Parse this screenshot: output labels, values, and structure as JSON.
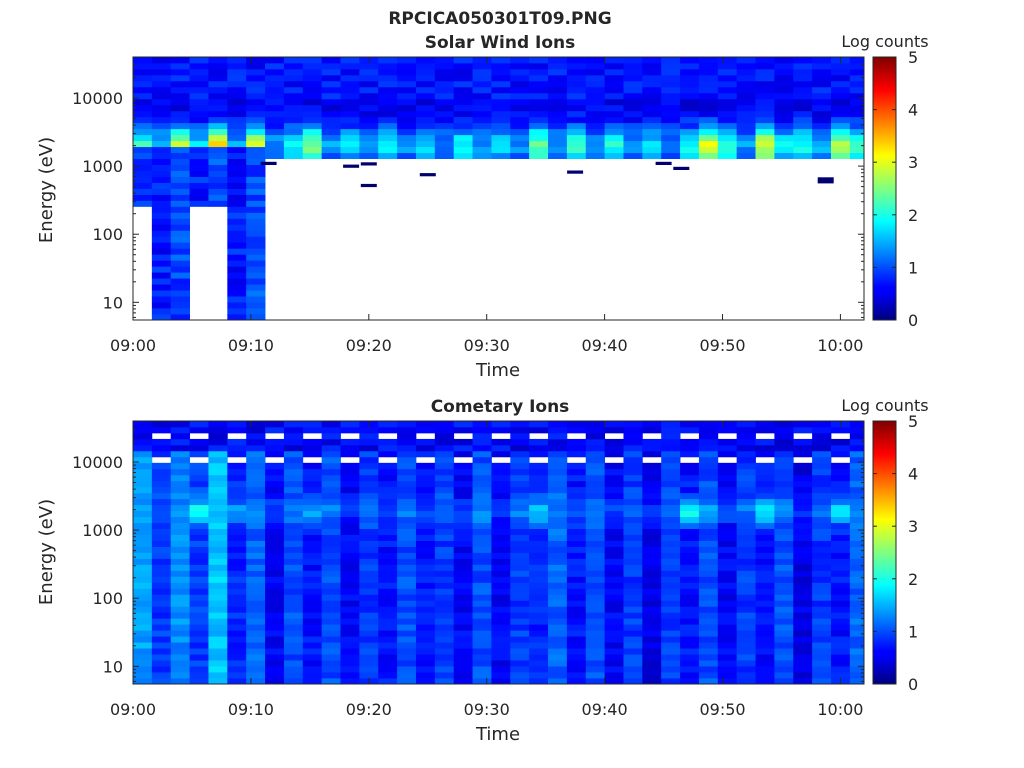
{
  "figure": {
    "title": "RPCICA050301T09.PNG"
  },
  "colormap": {
    "name": "jet",
    "min": 0,
    "max": 5
  },
  "chart_data": [
    {
      "type": "heatmap",
      "title": "Solar Wind Ions",
      "xlabel": "Time",
      "ylabel": "Energy (eV)",
      "y_scale": "log",
      "ylim": [
        5.5,
        40000
      ],
      "xlim": [
        "09:00",
        "10:02"
      ],
      "xticks": [
        "09:00",
        "09:10",
        "09:20",
        "09:30",
        "09:40",
        "09:50",
        "10:00"
      ],
      "yticks": [
        {
          "value": 10,
          "label": "10"
        },
        {
          "value": 100,
          "label": "100"
        },
        {
          "value": 1000,
          "label": "1000"
        },
        {
          "value": 10000,
          "label": "10000"
        }
      ],
      "colorbar": {
        "label": "Log counts",
        "ticks": [
          "0",
          "1",
          "2",
          "3",
          "4",
          "5"
        ]
      },
      "scan_minutes": 3.2,
      "peak_energy_ev": 2000,
      "columns": [
        {
          "start": "09:00",
          "end": "09:01:36",
          "min_energy": 280,
          "peak": 1.5
        },
        {
          "start": "09:01:36",
          "end": "09:03:12",
          "min_energy": 5.5,
          "peak": 1.0
        },
        {
          "start": "09:03:12",
          "end": "09:04:48",
          "min_energy": 5.5,
          "peak": 2.3
        },
        {
          "start": "09:04:48",
          "end": "09:06:24",
          "min_energy": 280,
          "peak": 1.1
        },
        {
          "start": "09:06:24",
          "end": "09:08:00",
          "min_energy": 280,
          "peak": 2.7
        },
        {
          "start": "09:08:00",
          "end": "09:09:36",
          "min_energy": 5.5,
          "peak": 0.9
        },
        {
          "start": "09:09:36",
          "end": "09:11:12",
          "min_energy": 5.5,
          "peak": 2.5
        },
        {
          "start": "09:11:12",
          "end": "09:12:48",
          "min_energy": 1200,
          "peak": 0.8
        },
        {
          "start": "09:12:48",
          "end": "09:14:24",
          "min_energy": 1200,
          "peak": 1.3
        },
        {
          "start": "09:14:24",
          "end": "09:16:00",
          "min_energy": 1200,
          "peak": 2.0
        },
        {
          "start": "09:16:00",
          "end": "09:17:36",
          "min_energy": 1200,
          "peak": 0.8
        },
        {
          "start": "09:17:36",
          "end": "09:19:12",
          "min_energy": 1200,
          "peak": 1.2
        },
        {
          "start": "09:19:12",
          "end": "09:20:48",
          "min_energy": 1200,
          "peak": 0.7
        },
        {
          "start": "09:20:48",
          "end": "09:22:24",
          "min_energy": 1200,
          "peak": 1.3
        },
        {
          "start": "09:22:24",
          "end": "09:24:00",
          "min_energy": 1200,
          "peak": 0.8
        },
        {
          "start": "09:24:00",
          "end": "09:25:36",
          "min_energy": 1200,
          "peak": 1.2
        },
        {
          "start": "09:25:36",
          "end": "09:27:12",
          "min_energy": 1200,
          "peak": 0.7
        },
        {
          "start": "09:27:12",
          "end": "09:28:48",
          "min_energy": 1200,
          "peak": 1.3
        },
        {
          "start": "09:28:48",
          "end": "09:30:24",
          "min_energy": 1200,
          "peak": 0.8
        },
        {
          "start": "09:30:24",
          "end": "09:32:00",
          "min_energy": 1200,
          "peak": 1.2
        },
        {
          "start": "09:32:00",
          "end": "09:33:36",
          "min_energy": 1200,
          "peak": 0.7
        },
        {
          "start": "09:33:36",
          "end": "09:35:12",
          "min_energy": 1200,
          "peak": 1.9
        },
        {
          "start": "09:35:12",
          "end": "09:36:48",
          "min_energy": 1200,
          "peak": 0.9
        },
        {
          "start": "09:36:48",
          "end": "09:38:24",
          "min_energy": 1200,
          "peak": 1.6
        },
        {
          "start": "09:38:24",
          "end": "09:40:00",
          "min_energy": 1200,
          "peak": 0.8
        },
        {
          "start": "09:40:00",
          "end": "09:41:36",
          "min_energy": 1200,
          "peak": 1.4
        },
        {
          "start": "09:41:36",
          "end": "09:43:12",
          "min_energy": 1200,
          "peak": 0.8
        },
        {
          "start": "09:43:12",
          "end": "09:44:48",
          "min_energy": 1200,
          "peak": 1.2
        },
        {
          "start": "09:44:48",
          "end": "09:46:24",
          "min_energy": 1200,
          "peak": 0.7
        },
        {
          "start": "09:46:24",
          "end": "09:48:00",
          "min_energy": 1200,
          "peak": 1.3
        },
        {
          "start": "09:48:00",
          "end": "09:49:36",
          "min_energy": 1200,
          "peak": 2.4
        },
        {
          "start": "09:49:36",
          "end": "09:51:12",
          "min_energy": 1200,
          "peak": 1.5
        },
        {
          "start": "09:51:12",
          "end": "09:52:48",
          "min_energy": 1200,
          "peak": 0.8
        },
        {
          "start": "09:52:48",
          "end": "09:54:24",
          "min_energy": 1200,
          "peak": 2.4
        },
        {
          "start": "09:54:24",
          "end": "09:56:00",
          "min_energy": 1200,
          "peak": 1.3
        },
        {
          "start": "09:56:00",
          "end": "09:57:36",
          "min_energy": 1200,
          "peak": 1.5
        },
        {
          "start": "09:57:36",
          "end": "09:59:12",
          "min_energy": 1200,
          "peak": 0.9
        },
        {
          "start": "09:59:12",
          "end": "10:00:48",
          "min_energy": 1200,
          "peak": 2.2
        },
        {
          "start": "10:00:48",
          "end": "10:02:24",
          "min_energy": 1200,
          "peak": 1.8
        }
      ],
      "low_energy_blips": [
        {
          "time": "09:18:30",
          "energy": 1000
        },
        {
          "time": "09:20",
          "energy": 1080
        },
        {
          "time": "09:20",
          "energy": 520
        },
        {
          "time": "09:25",
          "energy": 750
        },
        {
          "time": "09:37:30",
          "energy": 820
        },
        {
          "time": "09:45",
          "energy": 1100
        },
        {
          "time": "09:46:30",
          "energy": 930
        },
        {
          "time": "09:58:45",
          "energy": 650
        },
        {
          "time": "09:58:45",
          "energy": 590
        },
        {
          "time": "09:11:30",
          "energy": 1100
        }
      ]
    },
    {
      "type": "heatmap",
      "title": "Cometary Ions",
      "xlabel": "Time",
      "ylabel": "Energy (eV)",
      "y_scale": "log",
      "ylim": [
        5.5,
        40000
      ],
      "xlim": [
        "09:00",
        "10:02"
      ],
      "xticks": [
        "09:00",
        "09:10",
        "09:20",
        "09:30",
        "09:40",
        "09:50",
        "10:00"
      ],
      "yticks": [
        {
          "value": 10,
          "label": "10"
        },
        {
          "value": 100,
          "label": "100"
        },
        {
          "value": 1000,
          "label": "1000"
        },
        {
          "value": 10000,
          "label": "10000"
        }
      ],
      "colorbar": {
        "label": "Log counts",
        "ticks": [
          "0",
          "1",
          "2",
          "3",
          "4",
          "5"
        ]
      },
      "scan_minutes": 3.2,
      "peak_energy_ev": 1900,
      "columns": [
        {
          "start": "09:00",
          "end": "09:01:36",
          "base": 1.4,
          "peak": 1.3
        },
        {
          "start": "09:01:36",
          "end": "09:03:12",
          "base": 0.9,
          "peak": 1.0
        },
        {
          "start": "09:03:12",
          "end": "09:04:48",
          "base": 1.3,
          "peak": 1.3
        },
        {
          "start": "09:04:48",
          "end": "09:06:24",
          "base": 0.9,
          "peak": 1.9
        },
        {
          "start": "09:06:24",
          "end": "09:08:00",
          "base": 1.6,
          "peak": 1.5
        },
        {
          "start": "09:08:00",
          "end": "09:09:36",
          "base": 0.8,
          "peak": 1.4
        },
        {
          "start": "09:09:36",
          "end": "09:11:12",
          "base": 1.1,
          "peak": 1.3
        },
        {
          "start": "09:11:12",
          "end": "09:12:48",
          "base": 0.6,
          "peak": 1.0
        },
        {
          "start": "09:12:48",
          "end": "09:14:24",
          "base": 1.0,
          "peak": 1.2
        },
        {
          "start": "09:14:24",
          "end": "09:16:00",
          "base": 0.7,
          "peak": 1.5
        },
        {
          "start": "09:16:00",
          "end": "09:17:36",
          "base": 1.0,
          "peak": 1.2
        },
        {
          "start": "09:17:36",
          "end": "09:19:12",
          "base": 0.6,
          "peak": 0.9
        },
        {
          "start": "09:19:12",
          "end": "09:20:48",
          "base": 0.9,
          "peak": 1.1
        },
        {
          "start": "09:20:48",
          "end": "09:22:24",
          "base": 0.7,
          "peak": 0.9
        },
        {
          "start": "09:22:24",
          "end": "09:24:00",
          "base": 1.0,
          "peak": 1.2
        },
        {
          "start": "09:24:00",
          "end": "09:25:36",
          "base": 0.7,
          "peak": 1.0
        },
        {
          "start": "09:25:36",
          "end": "09:27:12",
          "base": 0.9,
          "peak": 1.2
        },
        {
          "start": "09:27:12",
          "end": "09:28:48",
          "base": 0.6,
          "peak": 0.9
        },
        {
          "start": "09:28:48",
          "end": "09:30:24",
          "base": 1.0,
          "peak": 1.3
        },
        {
          "start": "09:30:24",
          "end": "09:32:00",
          "base": 0.6,
          "peak": 0.9
        },
        {
          "start": "09:32:00",
          "end": "09:33:36",
          "base": 0.9,
          "peak": 1.2
        },
        {
          "start": "09:33:36",
          "end": "09:35:12",
          "base": 0.8,
          "peak": 1.7
        },
        {
          "start": "09:35:12",
          "end": "09:36:48",
          "base": 1.1,
          "peak": 1.3
        },
        {
          "start": "09:36:48",
          "end": "09:38:24",
          "base": 0.7,
          "peak": 1.0
        },
        {
          "start": "09:38:24",
          "end": "09:40:00",
          "base": 1.0,
          "peak": 1.2
        },
        {
          "start": "09:40:00",
          "end": "09:41:36",
          "base": 0.6,
          "peak": 0.9
        },
        {
          "start": "09:41:36",
          "end": "09:43:12",
          "base": 0.9,
          "peak": 1.1
        },
        {
          "start": "09:43:12",
          "end": "09:44:48",
          "base": 0.5,
          "peak": 0.9
        },
        {
          "start": "09:44:48",
          "end": "09:46:24",
          "base": 0.9,
          "peak": 1.2
        },
        {
          "start": "09:46:24",
          "end": "09:48:00",
          "base": 0.7,
          "peak": 1.9
        },
        {
          "start": "09:48:00",
          "end": "09:49:36",
          "base": 1.0,
          "peak": 1.4
        },
        {
          "start": "09:49:36",
          "end": "09:51:12",
          "base": 0.6,
          "peak": 1.0
        },
        {
          "start": "09:51:12",
          "end": "09:52:48",
          "base": 0.9,
          "peak": 1.2
        },
        {
          "start": "09:52:48",
          "end": "09:54:24",
          "base": 0.7,
          "peak": 1.9
        },
        {
          "start": "09:54:24",
          "end": "09:56:00",
          "base": 1.0,
          "peak": 1.3
        },
        {
          "start": "09:56:00",
          "end": "09:57:36",
          "base": 0.5,
          "peak": 0.9
        },
        {
          "start": "09:57:36",
          "end": "09:59:12",
          "base": 0.9,
          "peak": 1.1
        },
        {
          "start": "09:59:12",
          "end": "10:00:48",
          "base": 0.7,
          "peak": 1.8
        },
        {
          "start": "10:00:48",
          "end": "10:02:24",
          "base": 1.1,
          "peak": 1.4
        }
      ],
      "top_band_gaps": [
        {
          "energy_low": 10500,
          "energy_high": 12500
        },
        {
          "energy_low": 21000,
          "energy_high": 25000
        }
      ]
    }
  ]
}
